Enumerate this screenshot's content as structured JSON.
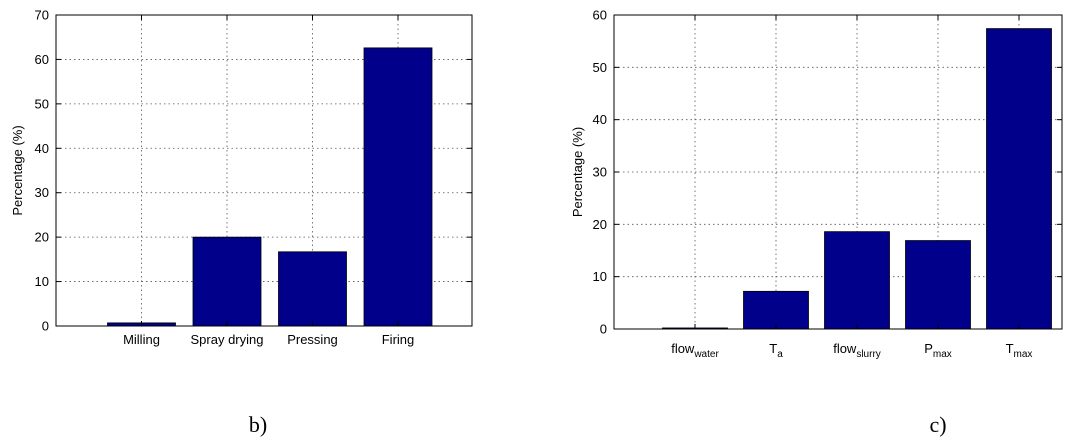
{
  "chart_data": [
    {
      "type": "bar",
      "categories": [
        "Milling",
        "Spray drying",
        "Pressing",
        "Firing"
      ],
      "values": [
        0.7,
        20.0,
        16.7,
        62.6
      ],
      "ylabel": "Percentage (%)",
      "ylim": [
        0,
        70
      ],
      "yticks": [
        0,
        10,
        20,
        30,
        40,
        50,
        60,
        70
      ],
      "grid": true,
      "bar_color": "#00008b",
      "panel_label": "b)"
    },
    {
      "type": "bar",
      "categories": [
        {
          "base": "flow",
          "sub": "water"
        },
        {
          "base": "T",
          "sub": "a"
        },
        {
          "base": "flow",
          "sub": "slurry"
        },
        {
          "base": "P",
          "sub": "max"
        },
        {
          "base": "T",
          "sub": "max"
        }
      ],
      "values": [
        0.2,
        7.2,
        18.6,
        16.9,
        57.4
      ],
      "ylabel": "Percentage (%)",
      "ylim": [
        0,
        60
      ],
      "yticks": [
        0,
        10,
        20,
        30,
        40,
        50,
        60
      ],
      "grid": true,
      "bar_color": "#00008b",
      "panel_label": "c)"
    }
  ]
}
